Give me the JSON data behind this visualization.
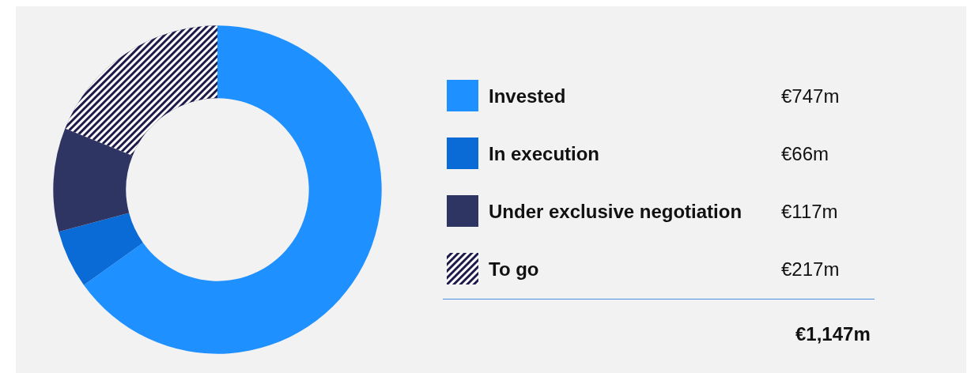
{
  "chart_data": {
    "type": "donut",
    "categories": [
      "Invested",
      "In execution",
      "Under exclusive negotiation",
      "To go"
    ],
    "values": [
      747,
      66,
      117,
      217
    ],
    "value_labels": [
      "€747m",
      "€66m",
      "€117m",
      "€217m"
    ],
    "colors": [
      "#1e90ff",
      "#0a6ad6",
      "#2e3563",
      "#1e1b4b"
    ],
    "legend": "right",
    "annotations": [
      "€1,147m"
    ]
  }
}
